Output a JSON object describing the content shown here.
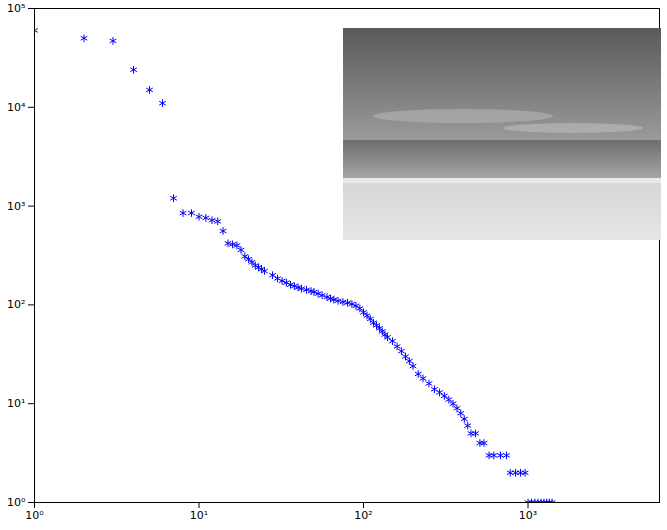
{
  "chart_data": {
    "type": "scatter",
    "log": true,
    "grid": false,
    "color": "#0000ff",
    "marker": "asterisk",
    "xlim": [
      1,
      6300
    ],
    "ylim": [
      1,
      100000
    ],
    "xticks": [
      {
        "value": 1,
        "label": "10⁰"
      },
      {
        "value": 10,
        "label": "10¹"
      },
      {
        "value": 100,
        "label": "10²"
      },
      {
        "value": 1000,
        "label": "10³"
      }
    ],
    "yticks": [
      {
        "value": 1,
        "label": "10⁰"
      },
      {
        "value": 10,
        "label": "10¹"
      },
      {
        "value": 100,
        "label": "10²"
      },
      {
        "value": 1000,
        "label": "10³"
      },
      {
        "value": 10000,
        "label": "10⁴"
      },
      {
        "value": 100000,
        "label": "10⁵"
      }
    ],
    "x": [
      1,
      2,
      3,
      4,
      5,
      6,
      7,
      8,
      9,
      10,
      11,
      12,
      13,
      14,
      15,
      16,
      17,
      18,
      19,
      20,
      21,
      22,
      23,
      24,
      25,
      28,
      30,
      32,
      34,
      36,
      38,
      40,
      42,
      45,
      48,
      50,
      53,
      56,
      60,
      63,
      66,
      70,
      75,
      80,
      85,
      90,
      95,
      100,
      105,
      110,
      115,
      120,
      125,
      130,
      135,
      140,
      150,
      160,
      170,
      180,
      190,
      200,
      215,
      230,
      250,
      270,
      290,
      310,
      330,
      350,
      370,
      390,
      410,
      430,
      450,
      480,
      510,
      540,
      580,
      620,
      680,
      740,
      780,
      840,
      900,
      960,
      1000,
      1050,
      1100,
      1150,
      1200,
      1250,
      1300,
      1350,
      1400
    ],
    "values": [
      60000,
      50000,
      47000,
      24000,
      15000,
      11000,
      1200,
      850,
      850,
      780,
      760,
      720,
      700,
      560,
      420,
      410,
      400,
      360,
      310,
      290,
      270,
      250,
      240,
      230,
      220,
      200,
      185,
      175,
      168,
      160,
      155,
      150,
      146,
      142,
      138,
      135,
      130,
      125,
      120,
      116,
      113,
      110,
      107,
      105,
      102,
      98,
      92,
      84,
      78,
      72,
      66,
      62,
      58,
      54,
      50,
      47,
      43,
      38,
      34,
      30,
      27,
      24,
      20,
      18,
      16,
      14,
      13,
      12,
      11,
      10,
      9,
      8,
      7,
      6,
      5,
      5,
      4,
      4,
      3,
      3,
      3,
      3,
      2,
      2,
      2,
      2,
      1,
      1,
      1,
      1,
      1,
      1,
      1,
      1,
      1
    ]
  }
}
